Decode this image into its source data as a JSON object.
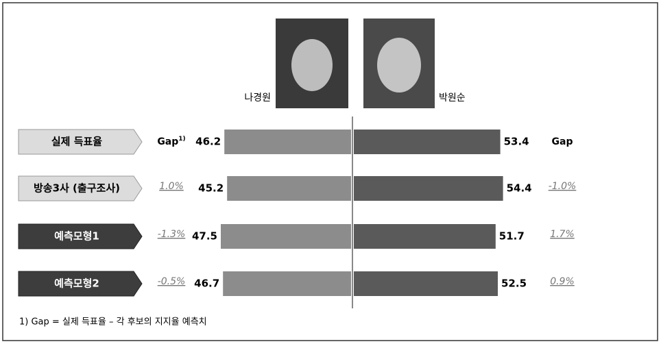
{
  "chart_data": {
    "type": "diverging_bar",
    "categories": [
      "실제 득표율",
      "방송3사 (출구조사)",
      "예측모형1",
      "예측모형2"
    ],
    "series": [
      {
        "name": "나경원",
        "color": "#8c8c8c",
        "values": [
          46.2,
          45.2,
          47.5,
          46.7
        ],
        "gaps": [
          null,
          1.0,
          -1.3,
          -0.5
        ],
        "gap_labels": [
          null,
          "1.0%",
          "-1.3%",
          "-0.5%"
        ]
      },
      {
        "name": "박원순",
        "color": "#5a5a5a",
        "values": [
          53.4,
          54.4,
          51.7,
          52.5
        ],
        "gaps": [
          null,
          -1.0,
          1.7,
          0.9
        ],
        "gap_labels": [
          null,
          "-1.0%",
          "1.7%",
          "0.9%"
        ]
      }
    ],
    "xlim": [
      0,
      60
    ],
    "gap_header": "Gap",
    "gap_header_note": "1)",
    "footnote": "1) Gap = 실제 득표율 – 각 후보의 지지율 예측치"
  }
}
